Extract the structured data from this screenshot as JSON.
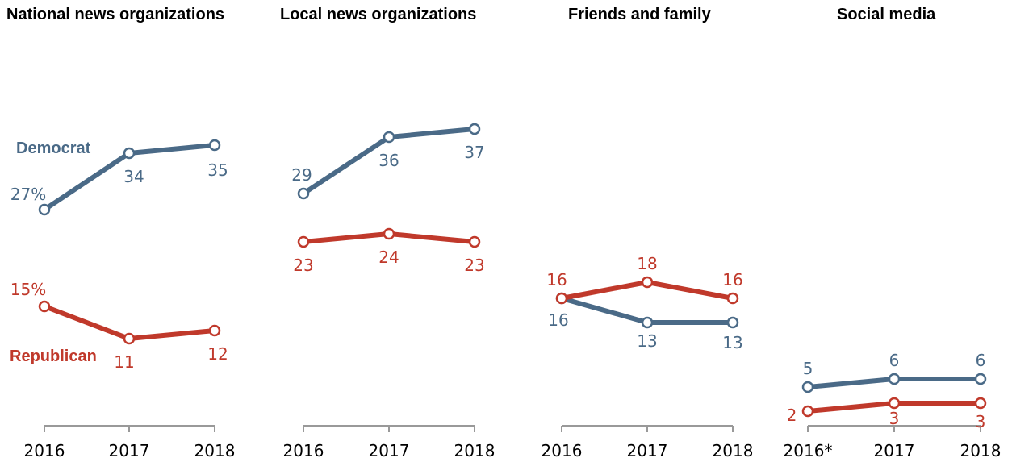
{
  "colors": {
    "democrat": "#4a6a87",
    "republican": "#c0392b",
    "axis": "#999999"
  },
  "chart_data": {
    "type": "line",
    "series_labels": {
      "democrat": "Democrat",
      "republican": "Republican"
    },
    "panels": [
      {
        "title": "National news organizations",
        "categories": [
          "2016",
          "2017",
          "2018"
        ],
        "series": [
          {
            "key": "democrat",
            "values": [
              27,
              34,
              35
            ],
            "labels": [
              "27%",
              "34",
              "35"
            ]
          },
          {
            "key": "republican",
            "values": [
              15,
              11,
              12
            ],
            "labels": [
              "15%",
              "11",
              "12"
            ]
          }
        ]
      },
      {
        "title": "Local news organizations",
        "categories": [
          "2016",
          "2017",
          "2018"
        ],
        "series": [
          {
            "key": "democrat",
            "values": [
              29,
              36,
              37
            ],
            "labels": [
              "29",
              "36",
              "37"
            ]
          },
          {
            "key": "republican",
            "values": [
              23,
              24,
              23
            ],
            "labels": [
              "23",
              "24",
              "23"
            ]
          }
        ]
      },
      {
        "title": "Friends and family",
        "categories": [
          "2016",
          "2017",
          "2018"
        ],
        "series": [
          {
            "key": "democrat",
            "values": [
              16,
              13,
              13
            ],
            "labels": [
              "16",
              "13",
              "13"
            ]
          },
          {
            "key": "republican",
            "values": [
              16,
              18,
              16
            ],
            "labels": [
              "16",
              "18",
              "16"
            ]
          }
        ]
      },
      {
        "title": "Social media",
        "categories": [
          "2016*",
          "2017",
          "2018"
        ],
        "series": [
          {
            "key": "democrat",
            "values": [
              5,
              6,
              6
            ],
            "labels": [
              "5",
              "6",
              "6"
            ]
          },
          {
            "key": "republican",
            "values": [
              2,
              3,
              3
            ],
            "labels": [
              "2",
              "3",
              "3"
            ]
          }
        ]
      }
    ]
  }
}
